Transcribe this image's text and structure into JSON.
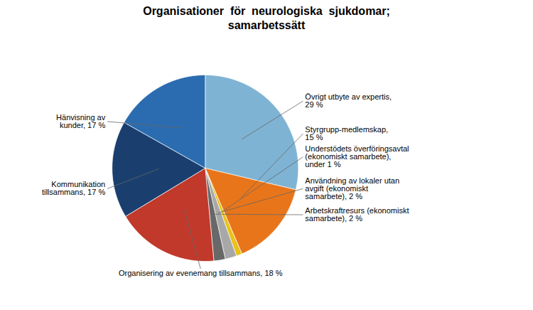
{
  "chart_data": {
    "type": "pie",
    "title": "Organisationer  för  neurologiska  sjukdomar;\nsamarbetssätt",
    "categories": [
      "Övrigt utbyte av expertis,\n29 %",
      "Styrgrupp-medlemskap,\n15 %",
      "Understödets överföringsavtal\n(ekonomiskt samarbete),\nunder 1 %",
      "Användning av lokaler utan\navgift (ekonomiskt\nsamarbete), 2 %",
      "Arbetskraftresurs (ekonomiskt\nsamarbete), 2 %",
      "Organisering av evenemang tillsammans, 18 %",
      "Kommunikation\ntillsammans, 17 %",
      "Hänvisning av\nkunder, 17 %"
    ],
    "values": [
      29,
      15,
      1,
      2,
      2,
      18,
      17,
      17
    ],
    "colors": [
      "#7FB3D3",
      "#E8751A",
      "#E8C21A",
      "#A8A8A8",
      "#686868",
      "#C0392B",
      "#1A3F6F",
      "#2B6CB0"
    ]
  }
}
